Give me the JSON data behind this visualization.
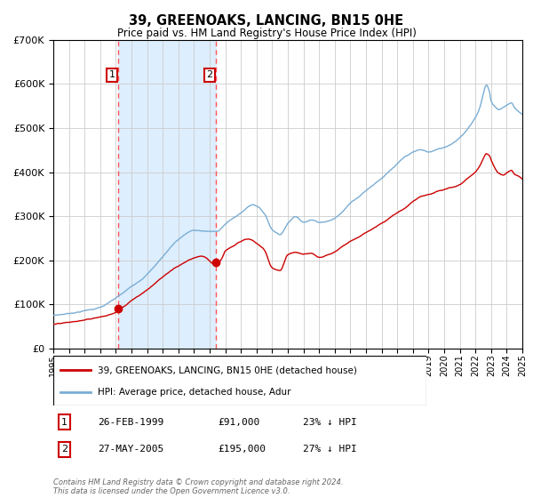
{
  "title": "39, GREENOAKS, LANCING, BN15 0HE",
  "subtitle": "Price paid vs. HM Land Registry's House Price Index (HPI)",
  "footer": "Contains HM Land Registry data © Crown copyright and database right 2024.\nThis data is licensed under the Open Government Licence v3.0.",
  "legend_line1": "39, GREENOAKS, LANCING, BN15 0HE (detached house)",
  "legend_line2": "HPI: Average price, detached house, Adur",
  "sale1_date": "26-FEB-1999",
  "sale1_price": 91000,
  "sale1_pct": "23% ↓ HPI",
  "sale2_date": "27-MAY-2005",
  "sale2_price": 195000,
  "sale2_pct": "27% ↓ HPI",
  "red_color": "#cc0000",
  "blue_color": "#7aadd4",
  "shade_color": "#ddeeff",
  "dashed_color": "#ff5555",
  "bg_color": "#ffffff",
  "grid_color": "#cccccc",
  "ylim": [
    0,
    700000
  ],
  "yticks": [
    0,
    100000,
    200000,
    300000,
    400000,
    500000,
    600000,
    700000
  ],
  "sale1_x": 1999.15,
  "sale2_x": 2005.4,
  "hpi_keypoints": [
    [
      1995.0,
      75000
    ],
    [
      1996.0,
      80000
    ],
    [
      1997.0,
      87000
    ],
    [
      1998.0,
      95000
    ],
    [
      1999.15,
      118000
    ],
    [
      2000.0,
      140000
    ],
    [
      2001.0,
      170000
    ],
    [
      2002.0,
      210000
    ],
    [
      2003.0,
      250000
    ],
    [
      2004.0,
      270000
    ],
    [
      2005.4,
      267000
    ],
    [
      2006.0,
      285000
    ],
    [
      2007.0,
      310000
    ],
    [
      2007.8,
      330000
    ],
    [
      2008.5,
      310000
    ],
    [
      2009.0,
      275000
    ],
    [
      2009.5,
      265000
    ],
    [
      2010.0,
      290000
    ],
    [
      2010.5,
      305000
    ],
    [
      2011.0,
      295000
    ],
    [
      2011.5,
      300000
    ],
    [
      2012.0,
      295000
    ],
    [
      2012.5,
      298000
    ],
    [
      2013.0,
      305000
    ],
    [
      2013.5,
      320000
    ],
    [
      2014.0,
      340000
    ],
    [
      2014.5,
      355000
    ],
    [
      2015.0,
      370000
    ],
    [
      2015.5,
      385000
    ],
    [
      2016.0,
      400000
    ],
    [
      2016.5,
      415000
    ],
    [
      2017.0,
      430000
    ],
    [
      2017.5,
      445000
    ],
    [
      2018.0,
      455000
    ],
    [
      2018.5,
      460000
    ],
    [
      2019.0,
      455000
    ],
    [
      2019.5,
      460000
    ],
    [
      2020.0,
      465000
    ],
    [
      2020.5,
      475000
    ],
    [
      2021.0,
      490000
    ],
    [
      2021.5,
      510000
    ],
    [
      2022.0,
      535000
    ],
    [
      2022.3,
      560000
    ],
    [
      2022.5,
      590000
    ],
    [
      2022.7,
      610000
    ],
    [
      2022.9,
      595000
    ],
    [
      2023.0,
      575000
    ],
    [
      2023.3,
      560000
    ],
    [
      2023.5,
      555000
    ],
    [
      2023.8,
      560000
    ],
    [
      2024.0,
      565000
    ],
    [
      2024.3,
      570000
    ],
    [
      2024.5,
      560000
    ],
    [
      2024.8,
      550000
    ],
    [
      2025.0,
      545000
    ]
  ],
  "price_keypoints": [
    [
      1995.0,
      55000
    ],
    [
      1996.0,
      58000
    ],
    [
      1997.0,
      63000
    ],
    [
      1998.0,
      70000
    ],
    [
      1999.0,
      82000
    ],
    [
      1999.15,
      91000
    ],
    [
      1999.5,
      95000
    ],
    [
      2000.0,
      110000
    ],
    [
      2001.0,
      135000
    ],
    [
      2002.0,
      165000
    ],
    [
      2003.0,
      190000
    ],
    [
      2004.0,
      210000
    ],
    [
      2004.5,
      215000
    ],
    [
      2005.4,
      195000
    ],
    [
      2005.8,
      210000
    ],
    [
      2006.0,
      225000
    ],
    [
      2006.5,
      235000
    ],
    [
      2007.0,
      245000
    ],
    [
      2007.5,
      250000
    ],
    [
      2008.0,
      240000
    ],
    [
      2008.5,
      225000
    ],
    [
      2009.0,
      185000
    ],
    [
      2009.5,
      180000
    ],
    [
      2010.0,
      215000
    ],
    [
      2010.5,
      220000
    ],
    [
      2011.0,
      215000
    ],
    [
      2011.5,
      218000
    ],
    [
      2012.0,
      210000
    ],
    [
      2012.5,
      215000
    ],
    [
      2013.0,
      222000
    ],
    [
      2013.5,
      235000
    ],
    [
      2014.0,
      248000
    ],
    [
      2014.5,
      258000
    ],
    [
      2015.0,
      270000
    ],
    [
      2015.5,
      280000
    ],
    [
      2016.0,
      292000
    ],
    [
      2016.5,
      303000
    ],
    [
      2017.0,
      315000
    ],
    [
      2017.5,
      325000
    ],
    [
      2018.0,
      340000
    ],
    [
      2018.5,
      350000
    ],
    [
      2019.0,
      355000
    ],
    [
      2019.5,
      360000
    ],
    [
      2020.0,
      365000
    ],
    [
      2020.5,
      370000
    ],
    [
      2021.0,
      375000
    ],
    [
      2021.5,
      390000
    ],
    [
      2022.0,
      405000
    ],
    [
      2022.3,
      420000
    ],
    [
      2022.5,
      435000
    ],
    [
      2022.7,
      445000
    ],
    [
      2022.9,
      440000
    ],
    [
      2023.0,
      430000
    ],
    [
      2023.2,
      415000
    ],
    [
      2023.5,
      400000
    ],
    [
      2023.8,
      395000
    ],
    [
      2024.0,
      400000
    ],
    [
      2024.3,
      405000
    ],
    [
      2024.5,
      395000
    ],
    [
      2024.8,
      390000
    ],
    [
      2025.0,
      385000
    ]
  ]
}
